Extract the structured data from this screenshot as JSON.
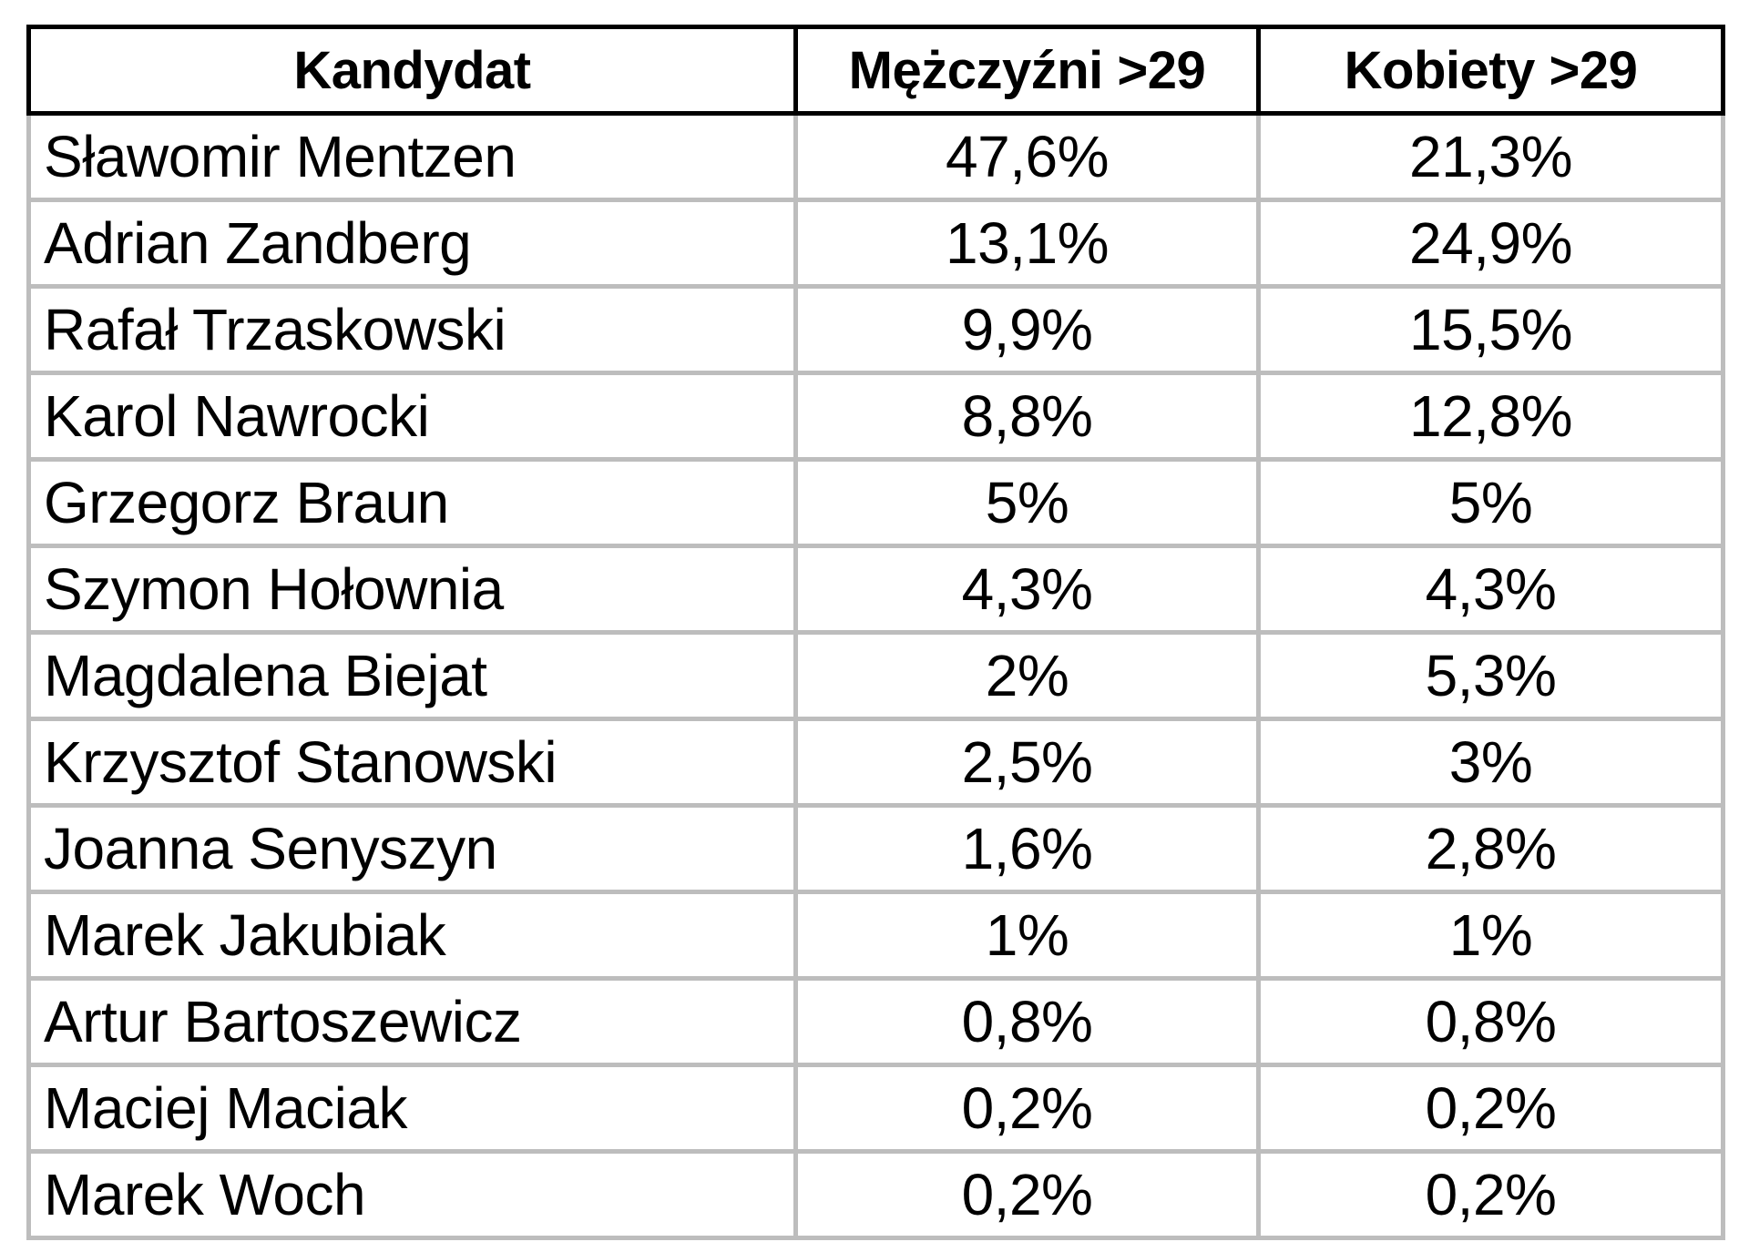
{
  "chart_data": {
    "type": "table",
    "columns": [
      "Kandydat",
      "Mężczyźni >29",
      "Kobiety >29"
    ],
    "rows": [
      [
        "Sławomir Mentzen",
        "47,6%",
        "21,3%"
      ],
      [
        "Adrian Zandberg",
        "13,1%",
        "24,9%"
      ],
      [
        "Rafał Trzaskowski",
        "9,9%",
        "15,5%"
      ],
      [
        "Karol Nawrocki",
        "8,8%",
        "12,8%"
      ],
      [
        "Grzegorz Braun",
        "5%",
        "5%"
      ],
      [
        "Szymon Hołownia",
        "4,3%",
        "4,3%"
      ],
      [
        "Magdalena Biejat",
        "2%",
        "5,3%"
      ],
      [
        "Krzysztof Stanowski",
        "2,5%",
        "3%"
      ],
      [
        "Joanna Senyszyn",
        "1,6%",
        "2,8%"
      ],
      [
        "Marek Jakubiak",
        "1%",
        "1%"
      ],
      [
        "Artur Bartoszewicz",
        "0,8%",
        "0,8%"
      ],
      [
        "Maciej Maciak",
        "0,2%",
        "0,2%"
      ],
      [
        "Marek Woch",
        "0,2%",
        "0,2%"
      ]
    ],
    "series": [
      {
        "name": "Mężczyźni >29",
        "values": [
          47.6,
          13.1,
          9.9,
          8.8,
          5,
          4.3,
          2,
          2.5,
          1.6,
          1,
          0.8,
          0.2,
          0.2
        ]
      },
      {
        "name": "Kobiety >29",
        "values": [
          21.3,
          24.9,
          15.5,
          12.8,
          5,
          4.3,
          5.3,
          3,
          2.8,
          1,
          0.8,
          0.2,
          0.2
        ]
      }
    ],
    "colors": {
      "header_border": "#000000",
      "cell_border": "#bdbdbd",
      "text": "#000000",
      "background": "#ffffff"
    }
  }
}
